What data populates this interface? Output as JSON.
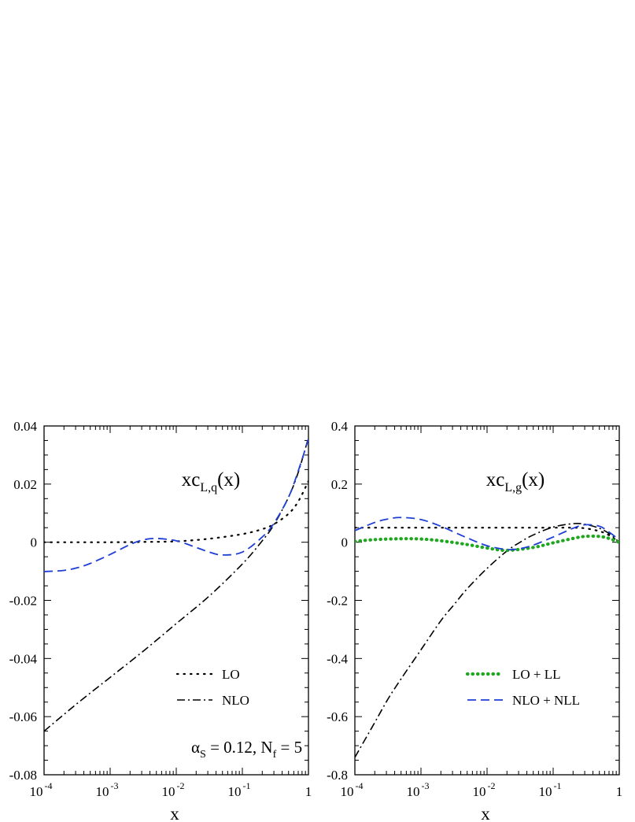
{
  "chart_data": [
    {
      "type": "line",
      "title": "xc",
      "title_subscript": "L,q",
      "title_suffix": "(x)",
      "xlabel": "x",
      "xscale": "log",
      "xlim": [
        0.0001,
        1
      ],
      "ylim": [
        -0.08,
        0.04
      ],
      "x_ticks": [
        {
          "base": "10",
          "exp": "-4"
        },
        {
          "base": "10",
          "exp": "-3"
        },
        {
          "base": "10",
          "exp": "-2"
        },
        {
          "base": "10",
          "exp": "-1"
        },
        {
          "base": "1",
          "exp": ""
        }
      ],
      "y_ticks": [
        "-0.08",
        "-0.06",
        "-0.04",
        "-0.02",
        "0",
        "0.02",
        "0.04"
      ],
      "y_tick_values": [
        -0.08,
        -0.06,
        -0.04,
        -0.02,
        0,
        0.02,
        0.04
      ],
      "grid": false,
      "legend": {
        "placement": "lower-right",
        "entries": [
          {
            "label": "LO",
            "style": "dotted",
            "color": "#000000"
          },
          {
            "label": "NLO",
            "style": "dash-dot",
            "color": "#000000"
          }
        ]
      },
      "annotation": {
        "symbol": "α",
        "symbol_sub": "S",
        "mid": " = 0.12,  N",
        "n_sub": "f",
        "tail": " = 5"
      },
      "series": [
        {
          "style": "dotted",
          "color": "#000000",
          "x": [
            0.0001,
            0.000316,
            0.001,
            0.00316,
            0.01,
            0.0316,
            0.1,
            0.2,
            0.3,
            0.5,
            0.7,
            1.0
          ],
          "y": [
            0.0,
            0.0,
            0.0,
            0.0001,
            0.0003,
            0.0012,
            0.0028,
            0.0045,
            0.0062,
            0.0098,
            0.014,
            0.021
          ]
        },
        {
          "style": "dash-dot",
          "color": "#000000",
          "x": [
            0.0001,
            0.000316,
            0.001,
            0.00316,
            0.01,
            0.0316,
            0.1,
            0.2,
            0.3,
            0.5,
            0.7,
            1.0
          ],
          "y": [
            -0.065,
            -0.0555,
            -0.0465,
            -0.0375,
            -0.028,
            -0.0185,
            -0.0075,
            0.0005,
            0.006,
            0.0155,
            0.024,
            0.036
          ]
        },
        {
          "style": "dashed",
          "color": "#1f3fd6",
          "x": [
            0.0001,
            0.0002,
            0.000316,
            0.0005,
            0.001,
            0.002,
            0.00316,
            0.005,
            0.01,
            0.02,
            0.0316,
            0.05,
            0.1,
            0.2,
            0.3,
            0.5,
            0.7,
            1.0
          ],
          "y": [
            -0.0101,
            -0.0097,
            -0.0088,
            -0.0073,
            -0.0042,
            -0.0008,
            0.0008,
            0.0013,
            0.0005,
            -0.0018,
            -0.0034,
            -0.0044,
            -0.0034,
            0.0018,
            0.0065,
            0.0155,
            0.0245,
            0.0355
          ]
        }
      ]
    },
    {
      "type": "line",
      "title": "xc",
      "title_subscript": "L,g",
      "title_suffix": "(x)",
      "xlabel": "x",
      "xscale": "log",
      "xlim": [
        0.0001,
        1
      ],
      "ylim": [
        -0.8,
        0.4
      ],
      "x_ticks": [
        {
          "base": "10",
          "exp": "-4"
        },
        {
          "base": "10",
          "exp": "-3"
        },
        {
          "base": "10",
          "exp": "-2"
        },
        {
          "base": "10",
          "exp": "-1"
        },
        {
          "base": "1",
          "exp": ""
        }
      ],
      "y_ticks": [
        "-0.8",
        "-0.6",
        "-0.4",
        "-0.2",
        "0",
        "0.2",
        "0.4"
      ],
      "y_tick_values": [
        -0.8,
        -0.6,
        -0.4,
        -0.2,
        0,
        0.2,
        0.4
      ],
      "grid": false,
      "legend": {
        "placement": "lower-right",
        "entries": [
          {
            "label": "LO + LL",
            "style": "dotted-thick",
            "color": "#1fa81f"
          },
          {
            "label": "NLO + NLL",
            "style": "dashed",
            "color": "#1f3fd6"
          }
        ]
      },
      "series": [
        {
          "style": "dotted",
          "color": "#000000",
          "x": [
            0.0001,
            0.000316,
            0.001,
            0.00316,
            0.01,
            0.0316,
            0.1,
            0.2,
            0.3,
            0.5,
            0.7,
            1.0
          ],
          "y": [
            0.05,
            0.05,
            0.05,
            0.05,
            0.05,
            0.05,
            0.05,
            0.05,
            0.048,
            0.038,
            0.024,
            0.0
          ]
        },
        {
          "style": "dash-dot",
          "color": "#000000",
          "x": [
            0.0001,
            0.0002,
            0.000316,
            0.0005,
            0.001,
            0.002,
            0.00316,
            0.005,
            0.01,
            0.02,
            0.0316,
            0.05,
            0.1,
            0.2,
            0.3,
            0.5,
            0.7,
            1.0
          ],
          "y": [
            -0.74,
            -0.62,
            -0.54,
            -0.47,
            -0.37,
            -0.27,
            -0.215,
            -0.16,
            -0.09,
            -0.03,
            0.0,
            0.025,
            0.052,
            0.064,
            0.062,
            0.048,
            0.03,
            0.0
          ]
        },
        {
          "style": "dotted-thick",
          "color": "#1fa81f",
          "x": [
            0.0001,
            0.0002,
            0.0005,
            0.001,
            0.002,
            0.005,
            0.01,
            0.02,
            0.05,
            0.1,
            0.2,
            0.3,
            0.5,
            0.7,
            1.0
          ],
          "y": [
            0.003,
            0.009,
            0.012,
            0.011,
            0.005,
            -0.008,
            -0.02,
            -0.028,
            -0.018,
            -0.002,
            0.013,
            0.02,
            0.02,
            0.013,
            0.0
          ]
        },
        {
          "style": "dashed",
          "color": "#1f3fd6",
          "x": [
            0.0001,
            0.0002,
            0.000316,
            0.0005,
            0.001,
            0.002,
            0.00316,
            0.005,
            0.01,
            0.02,
            0.0316,
            0.05,
            0.1,
            0.2,
            0.3,
            0.5,
            0.7,
            1.0
          ],
          "y": [
            0.04,
            0.068,
            0.08,
            0.085,
            0.078,
            0.055,
            0.035,
            0.015,
            -0.012,
            -0.025,
            -0.022,
            -0.01,
            0.018,
            0.048,
            0.06,
            0.055,
            0.035,
            0.008
          ]
        }
      ]
    }
  ]
}
